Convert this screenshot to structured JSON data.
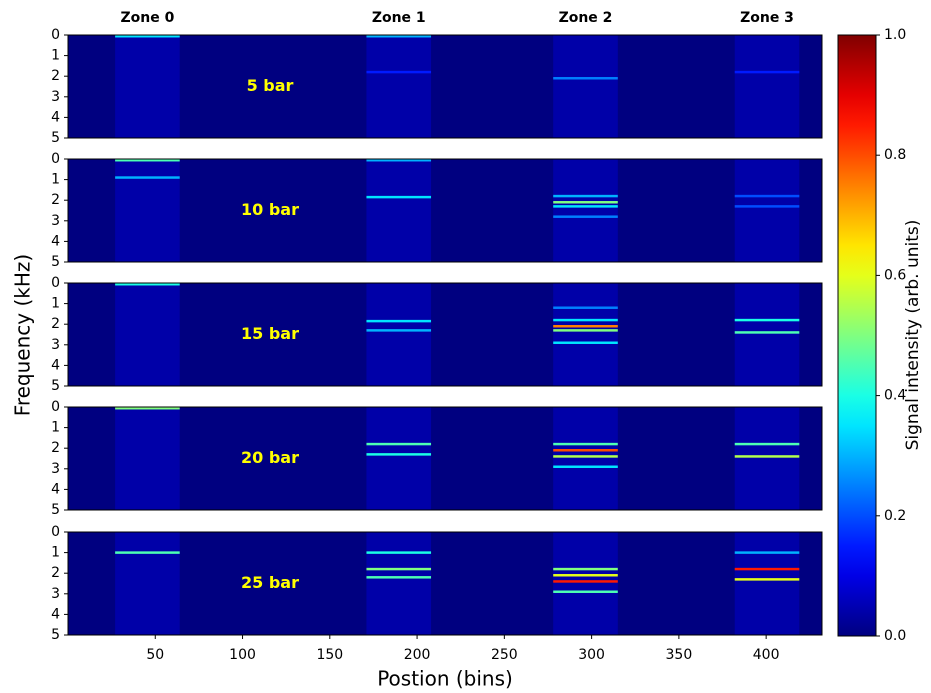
{
  "chart_data": {
    "type": "heatmap",
    "xlabel": "Postion (bins)",
    "ylabel": "Frequency (kHz)",
    "colorbar_label": "Signal intensity (arb. units)",
    "colormap": "jet",
    "xlim": [
      0,
      432
    ],
    "xticks": [
      50,
      100,
      150,
      200,
      250,
      300,
      350,
      400
    ],
    "ylim": [
      5,
      0
    ],
    "yticks": [
      0,
      1,
      2,
      3,
      4,
      5
    ],
    "clim": [
      0,
      1
    ],
    "cticks": [
      {
        "value": 0,
        "label": "0.0"
      },
      {
        "value": 0.2,
        "label": "0.2"
      },
      {
        "value": 0.4,
        "label": "0.4"
      },
      {
        "value": 0.6,
        "label": "0.6"
      },
      {
        "value": 0.8,
        "label": "0.8"
      },
      {
        "value": 1,
        "label": "1.0"
      }
    ],
    "zones": [
      {
        "label": "Zone 0",
        "x": [
          27,
          64
        ]
      },
      {
        "label": "Zone 1",
        "x": [
          171,
          208
        ]
      },
      {
        "label": "Zone 2",
        "x": [
          278,
          315
        ]
      },
      {
        "label": "Zone 3",
        "x": [
          382,
          419
        ]
      }
    ],
    "panels": [
      {
        "label": "5 bar",
        "zone_level": 0.04,
        "bands": [
          {
            "x": [
              27,
              64
            ],
            "y": 0,
            "value": 0.35
          },
          {
            "x": [
              171,
              208
            ],
            "y": 0,
            "value": 0.3
          },
          {
            "x": [
              171,
              208
            ],
            "y": 1.8,
            "value": 0.15
          },
          {
            "x": [
              278,
              315
            ],
            "y": 2.1,
            "value": 0.25
          },
          {
            "x": [
              382,
              419
            ],
            "y": 1.8,
            "value": 0.15
          }
        ]
      },
      {
        "label": "10 bar",
        "zone_level": 0.04,
        "bands": [
          {
            "x": [
              27,
              64
            ],
            "y": 0,
            "value": 0.45
          },
          {
            "x": [
              27,
              64
            ],
            "y": 0.9,
            "value": 0.3
          },
          {
            "x": [
              171,
              208
            ],
            "y": 0,
            "value": 0.3
          },
          {
            "x": [
              171,
              208
            ],
            "y": 1.85,
            "value": 0.35
          },
          {
            "x": [
              278,
              315
            ],
            "y": 1.8,
            "value": 0.3
          },
          {
            "x": [
              278,
              315
            ],
            "y": 2.1,
            "value": 0.5
          },
          {
            "x": [
              278,
              315
            ],
            "y": 2.3,
            "value": 0.35
          },
          {
            "x": [
              278,
              315
            ],
            "y": 2.8,
            "value": 0.25
          },
          {
            "x": [
              382,
              419
            ],
            "y": 1.8,
            "value": 0.2
          },
          {
            "x": [
              382,
              419
            ],
            "y": 2.3,
            "value": 0.2
          }
        ]
      },
      {
        "label": "15 bar",
        "zone_level": 0.04,
        "bands": [
          {
            "x": [
              27,
              64
            ],
            "y": 0,
            "value": 0.4
          },
          {
            "x": [
              171,
              208
            ],
            "y": 1.85,
            "value": 0.35
          },
          {
            "x": [
              171,
              208
            ],
            "y": 2.3,
            "value": 0.3
          },
          {
            "x": [
              278,
              315
            ],
            "y": 1.2,
            "value": 0.25
          },
          {
            "x": [
              278,
              315
            ],
            "y": 1.8,
            "value": 0.35
          },
          {
            "x": [
              278,
              315
            ],
            "y": 2.1,
            "value": 0.75
          },
          {
            "x": [
              278,
              315
            ],
            "y": 2.3,
            "value": 0.5
          },
          {
            "x": [
              278,
              315
            ],
            "y": 2.9,
            "value": 0.35
          },
          {
            "x": [
              382,
              419
            ],
            "y": 1.8,
            "value": 0.4
          },
          {
            "x": [
              382,
              419
            ],
            "y": 2.4,
            "value": 0.45
          }
        ]
      },
      {
        "label": "20 bar",
        "zone_level": 0.04,
        "bands": [
          {
            "x": [
              27,
              64
            ],
            "y": 0,
            "value": 0.5
          },
          {
            "x": [
              171,
              208
            ],
            "y": 1.8,
            "value": 0.45
          },
          {
            "x": [
              171,
              208
            ],
            "y": 2.3,
            "value": 0.4
          },
          {
            "x": [
              278,
              315
            ],
            "y": 1.8,
            "value": 0.45
          },
          {
            "x": [
              278,
              315
            ],
            "y": 2.1,
            "value": 0.8
          },
          {
            "x": [
              278,
              315
            ],
            "y": 2.4,
            "value": 0.55
          },
          {
            "x": [
              278,
              315
            ],
            "y": 2.9,
            "value": 0.35
          },
          {
            "x": [
              382,
              419
            ],
            "y": 1.8,
            "value": 0.45
          },
          {
            "x": [
              382,
              419
            ],
            "y": 2.4,
            "value": 0.55
          }
        ]
      },
      {
        "label": "25 bar",
        "zone_level": 0.04,
        "bands": [
          {
            "x": [
              27,
              64
            ],
            "y": 1,
            "value": 0.45
          },
          {
            "x": [
              171,
              208
            ],
            "y": 1,
            "value": 0.4
          },
          {
            "x": [
              171,
              208
            ],
            "y": 1.8,
            "value": 0.5
          },
          {
            "x": [
              171,
              208
            ],
            "y": 2.2,
            "value": 0.45
          },
          {
            "x": [
              278,
              315
            ],
            "y": 1.8,
            "value": 0.5
          },
          {
            "x": [
              278,
              315
            ],
            "y": 2.1,
            "value": 0.6
          },
          {
            "x": [
              278,
              315
            ],
            "y": 2.4,
            "value": 0.85
          },
          {
            "x": [
              278,
              315
            ],
            "y": 2.9,
            "value": 0.45
          },
          {
            "x": [
              382,
              419
            ],
            "y": 1,
            "value": 0.3
          },
          {
            "x": [
              382,
              419
            ],
            "y": 1.8,
            "value": 0.85
          },
          {
            "x": [
              382,
              419
            ],
            "y": 2.3,
            "value": 0.6
          }
        ]
      }
    ]
  }
}
